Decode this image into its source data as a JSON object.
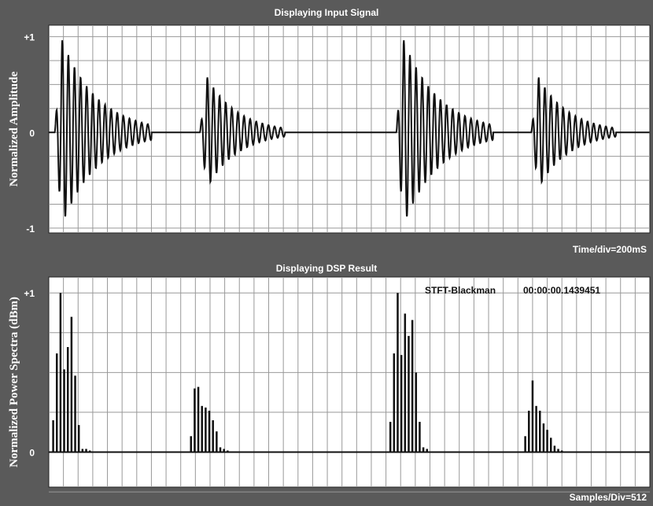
{
  "chart_data": [
    {
      "type": "line",
      "title": "Displaying Input Signal",
      "ylabel": "Normalized Amplitude",
      "xlabel": "Time/div=200mS",
      "ytick_labels": [
        "+1",
        "0",
        "-1"
      ],
      "yticks": [
        1,
        0,
        -1
      ],
      "ylim": [
        -1.05,
        1.12
      ],
      "grid": true,
      "bursts": [
        {
          "t": 0.4,
          "peak": 0.97,
          "len": 5.4
        },
        {
          "t": 10.3,
          "peak": 0.58,
          "len": 4.6
        },
        {
          "t": 23.7,
          "peak": 0.97,
          "len": 5.4
        },
        {
          "t": 32.9,
          "peak": 0.58,
          "len": 4.6
        }
      ],
      "x_divisions": 41,
      "colors": {
        "bg": "#ffffff",
        "grid": "#999999",
        "trace": "#111111"
      }
    },
    {
      "type": "bar",
      "title": "Displaying DSP Result",
      "ylabel": "Normalized Power Spectra (dBm)",
      "xlabel": "Samples/Div=512",
      "ytick_labels": [
        "+1",
        "0"
      ],
      "yticks": [
        1,
        0
      ],
      "ylim": [
        -0.22,
        1.1
      ],
      "grid": true,
      "annotation_method": "STFT-Blackman",
      "annotation_time": "00:00:00.1439451",
      "x_divisions": 41,
      "groups": [
        {
          "start": 0.3,
          "values": [
            0.2,
            0.62,
            1.0,
            0.52,
            0.66,
            0.85,
            0.48,
            0.17,
            0.02,
            0.02,
            0.01
          ]
        },
        {
          "start": 9.7,
          "values": [
            0.1,
            0.4,
            0.41,
            0.29,
            0.28,
            0.26,
            0.2,
            0.13,
            0.03,
            0.02,
            0.01
          ]
        },
        {
          "start": 23.3,
          "values": [
            0.19,
            0.62,
            1.0,
            0.61,
            0.87,
            0.73,
            0.83,
            0.5,
            0.19,
            0.03,
            0.02
          ]
        },
        {
          "start": 32.5,
          "values": [
            0.1,
            0.26,
            0.45,
            0.29,
            0.26,
            0.18,
            0.14,
            0.09,
            0.04,
            0.02,
            0.01
          ]
        }
      ],
      "colors": {
        "bg": "#ffffff",
        "grid": "#999999",
        "trace": "#111111"
      }
    }
  ],
  "colors": {
    "frame": "#5a5a5a",
    "label_text": "#ffffff"
  }
}
